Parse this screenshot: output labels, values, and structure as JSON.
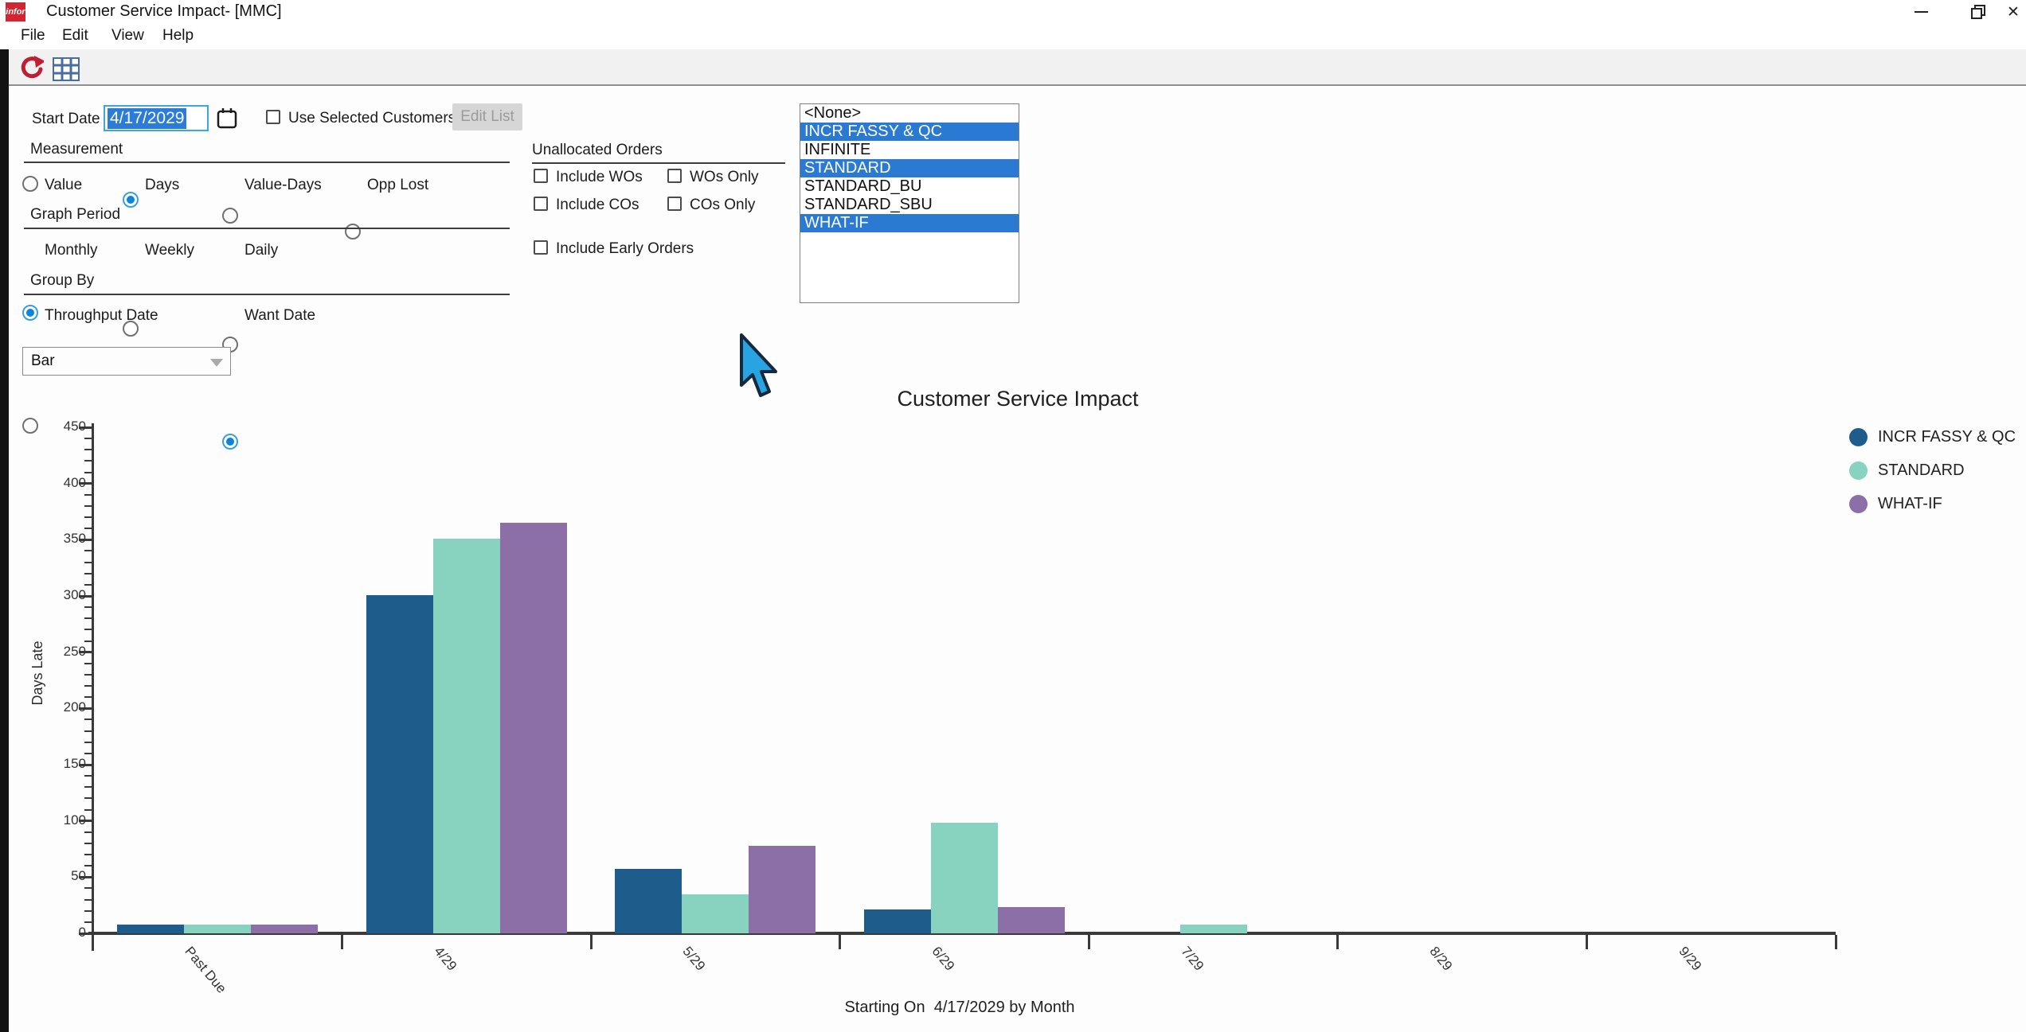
{
  "window": {
    "logo": "infor",
    "title": "Customer Service Impact- [MMC]",
    "controls": {
      "minimize": "—",
      "close": "✕"
    }
  },
  "menu": {
    "items": [
      "File",
      "Edit",
      "View",
      "Help"
    ]
  },
  "toolbar": {
    "icons": [
      "refresh-icon",
      "grid-icon"
    ]
  },
  "form": {
    "start_date": {
      "label": "Start Date",
      "value": "4/17/2029"
    },
    "use_selected_customers": {
      "label": "Use Selected Customers",
      "checked": false
    },
    "edit_list_button": {
      "label": "Edit List",
      "enabled": false
    },
    "measurement": {
      "label": "Measurement",
      "options": [
        {
          "label": "Value",
          "selected": false
        },
        {
          "label": "Days",
          "selected": true
        },
        {
          "label": "Value-Days",
          "selected": false
        },
        {
          "label": "Opp Lost",
          "selected": false
        }
      ]
    },
    "graph_period": {
      "label": "Graph Period",
      "options": [
        {
          "label": "Monthly",
          "selected": true
        },
        {
          "label": "Weekly",
          "selected": false
        },
        {
          "label": "Daily",
          "selected": false
        }
      ]
    },
    "group_by": {
      "label": "Group By",
      "options": [
        {
          "label": "Throughput Date",
          "selected": false
        },
        {
          "label": "Want Date",
          "selected": true
        }
      ]
    },
    "chart_type_dropdown": {
      "value": "Bar"
    },
    "unallocated_orders": {
      "label": "Unallocated Orders",
      "checkboxes": [
        {
          "label": "Include WOs",
          "checked": false
        },
        {
          "label": "WOs Only",
          "checked": false
        },
        {
          "label": "Include COs",
          "checked": false
        },
        {
          "label": "COs Only",
          "checked": false
        },
        {
          "label": "Include Early Orders",
          "checked": false
        }
      ]
    },
    "scenario_list": {
      "items": [
        {
          "label": "<None>",
          "selected": false
        },
        {
          "label": "INCR FASSY & QC",
          "selected": true
        },
        {
          "label": "INFINITE",
          "selected": false
        },
        {
          "label": "STANDARD",
          "selected": true
        },
        {
          "label": "STANDARD_BU",
          "selected": false
        },
        {
          "label": "STANDARD_SBU",
          "selected": false
        },
        {
          "label": "WHAT-IF",
          "selected": true
        }
      ]
    }
  },
  "chart_data": {
    "type": "bar",
    "title": "Customer Service Impact",
    "ylabel": "Days Late",
    "caption": "Starting On  4/17/2029 by Month",
    "categories": [
      "Past Due",
      "4/29",
      "5/29",
      "6/29",
      "7/29",
      "8/29",
      "9/29"
    ],
    "series": [
      {
        "name": "INCR FASSY & QC",
        "color": "#1e5c8c",
        "values": [
          8,
          301,
          57,
          21,
          0,
          0,
          0
        ]
      },
      {
        "name": "STANDARD",
        "color": "#87d3bf",
        "values": [
          8,
          351,
          35,
          98,
          8,
          0,
          0
        ]
      },
      {
        "name": "WHAT-IF",
        "color": "#8d6fa8",
        "values": [
          8,
          365,
          78,
          23,
          0,
          0,
          0
        ]
      }
    ],
    "ylim": [
      0,
      450
    ],
    "y_major_step": 50,
    "y_minor_step": 10,
    "grid": false,
    "legend_position": "top-right"
  }
}
